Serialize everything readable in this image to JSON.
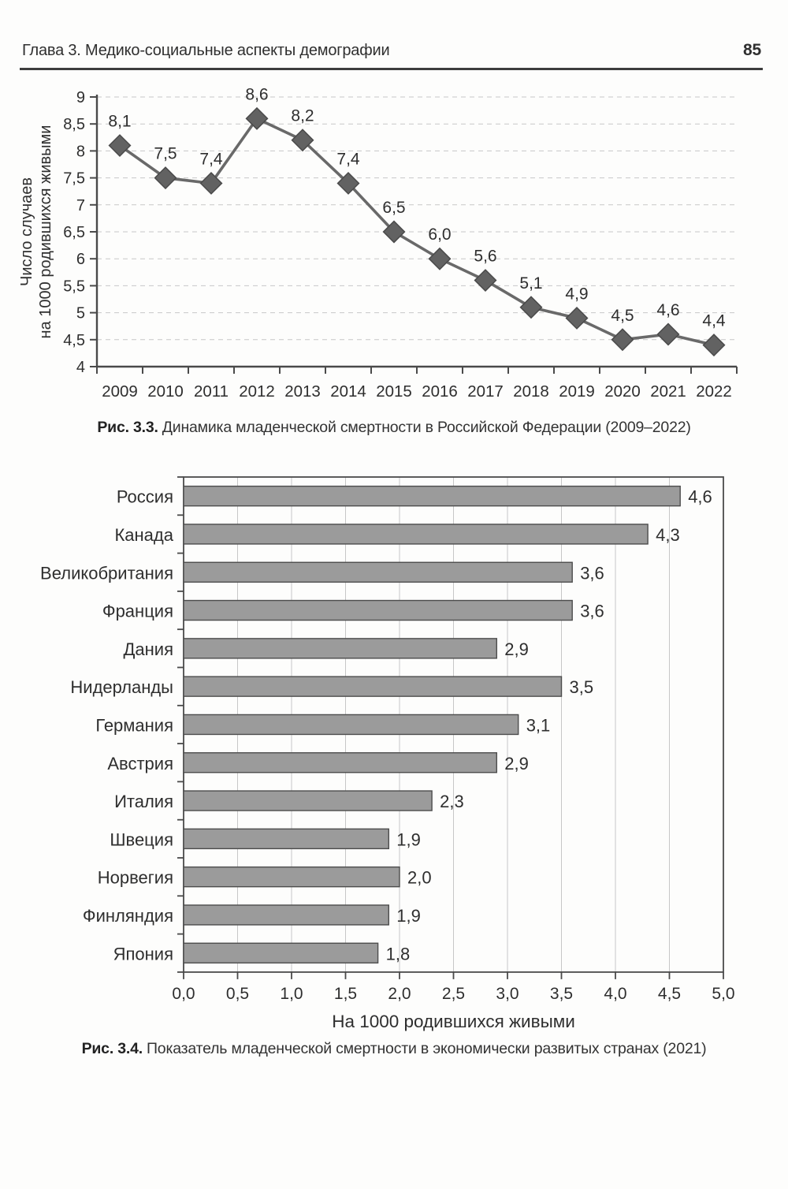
{
  "header": {
    "chapter": "Глава 3. Медико-социальные аспекты демографии",
    "page_number": "85"
  },
  "figures": [
    {
      "caption_label": "Рис. 3.3.",
      "caption_text": "Динамика младенческой смертности в Российской Федерации (2009–2022)"
    },
    {
      "caption_label": "Рис. 3.4.",
      "caption_text": "Показатель младенческой смертности в экономически развитых странах (2021)"
    }
  ],
  "chart_data": [
    {
      "type": "line",
      "title": "",
      "x": [
        "2009",
        "2010",
        "2011",
        "2012",
        "2013",
        "2014",
        "2015",
        "2016",
        "2017",
        "2018",
        "2019",
        "2020",
        "2021",
        "2022"
      ],
      "values": [
        8.1,
        7.5,
        7.4,
        8.6,
        8.2,
        7.4,
        6.5,
        6.0,
        5.6,
        5.1,
        4.9,
        4.5,
        4.6,
        4.4
      ],
      "point_labels": [
        "8,1",
        "7,5",
        "7,4",
        "8,6",
        "8,2",
        "7,4",
        "6,5",
        "6,0",
        "5,6",
        "5,1",
        "4,9",
        "4,5",
        "4,6",
        "4,4"
      ],
      "ylabel": "Число случаев на 1000 родившихся живыми",
      "ylabel_lines": [
        "Число случаев",
        "на 1000 родившихся живыми"
      ],
      "xlabel": "",
      "ylim": [
        4,
        9
      ],
      "ytick_values": [
        4,
        4.5,
        5,
        5.5,
        6,
        6.5,
        7,
        7.5,
        8,
        8.5,
        9
      ],
      "ytick_labels": [
        "4",
        "4,5",
        "5",
        "5,5",
        "6",
        "6,5",
        "7",
        "7,5",
        "8",
        "8,5",
        "9"
      ],
      "grid": "horizontal-dashed",
      "legend": "none",
      "marker": "diamond"
    },
    {
      "type": "bar",
      "orientation": "horizontal",
      "title": "",
      "categories": [
        "Россия",
        "Канада",
        "Великобритания",
        "Франция",
        "Дания",
        "Нидерланды",
        "Германия",
        "Австрия",
        "Италия",
        "Швеция",
        "Норвегия",
        "Финляндия",
        "Япония"
      ],
      "values": [
        4.6,
        4.3,
        3.6,
        3.6,
        2.9,
        3.5,
        3.1,
        2.9,
        2.3,
        1.9,
        2.0,
        1.9,
        1.8
      ],
      "value_labels": [
        "4,6",
        "4,3",
        "3,6",
        "3,6",
        "2,9",
        "3,5",
        "3,1",
        "2,9",
        "2,3",
        "1,9",
        "2,0",
        "1,9",
        "1,8"
      ],
      "xlabel": "На 1000 родившихся живыми",
      "xlim": [
        0,
        5
      ],
      "xtick_values": [
        0,
        0.5,
        1.0,
        1.5,
        2.0,
        2.5,
        3.0,
        3.5,
        4.0,
        4.5,
        5.0
      ],
      "xtick_labels": [
        "0,0",
        "0,5",
        "1,0",
        "1,5",
        "2,0",
        "2,5",
        "3,0",
        "3,5",
        "4,0",
        "4,5",
        "5,0"
      ],
      "grid": "vertical",
      "legend": "none"
    }
  ],
  "colors": {
    "bar_fill": "#9b9b9b",
    "bar_border": "#4d4d4d",
    "line_stroke": "#696969",
    "marker_fill": "#626262",
    "marker_border": "#4a4a4a",
    "axis": "#4a4a4a",
    "gridline": "#c7c7c7",
    "text": "#2e2e2e"
  }
}
